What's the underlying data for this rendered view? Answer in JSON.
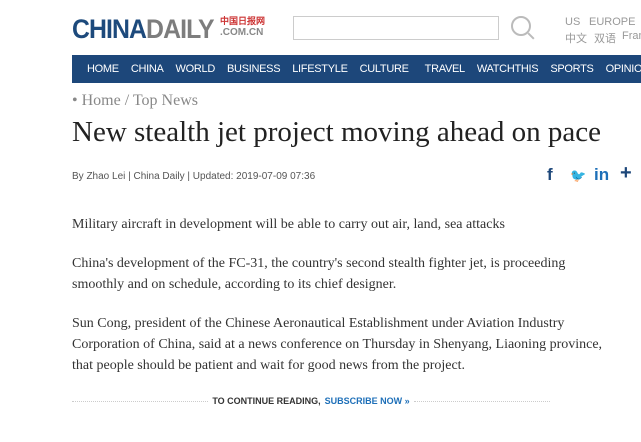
{
  "header": {
    "logo_main_a": "CHINA",
    "logo_main_b": "DAILY",
    "logo_cn": "中国日报网",
    "logo_domain": ".COM.CN",
    "search_placeholder": "",
    "editions_row1": [
      "US",
      "EUROPE"
    ],
    "editions_row2": [
      "中文",
      "双语",
      "Fran"
    ]
  },
  "nav": [
    "HOME",
    "CHINA",
    "WORLD",
    "BUSINESS",
    "LIFESTYLE",
    "CULTURE",
    "TRAVEL",
    "WATCHTHIS",
    "SPORTS",
    "OPINION"
  ],
  "breadcrumb": {
    "bullet": "•",
    "home": "Home",
    "sep": "/",
    "section": "Top News"
  },
  "article": {
    "title": "New stealth jet project moving ahead on pace",
    "byline": "By Zhao Lei | China Daily | Updated: 2019-07-09 07:36",
    "paragraphs": [
      [
        "Military aircraft in development will be able to carry out air, land, sea attacks"
      ],
      [
        "China's development of the FC-31, the country's second stealth fighter jet, is proceeding",
        "smoothly and on schedule, according to its chief designer."
      ],
      [
        "Sun Cong, president of the Chinese Aeronautical Establishment under Aviation Industry",
        "Corporation of China, said at a news conference on Thursday in Shenyang, Liaoning province,",
        "that people should be patient and wait for good news from the project."
      ]
    ]
  },
  "share": {
    "facebook": "f",
    "twitter": "🐦",
    "linkedin": "in",
    "more": "+"
  },
  "continue": {
    "text": "TO CONTINUE READING,",
    "link": "SUBSCRIBE NOW »"
  },
  "colors": {
    "brand": "#1d477a",
    "link": "#1d6fb8"
  }
}
